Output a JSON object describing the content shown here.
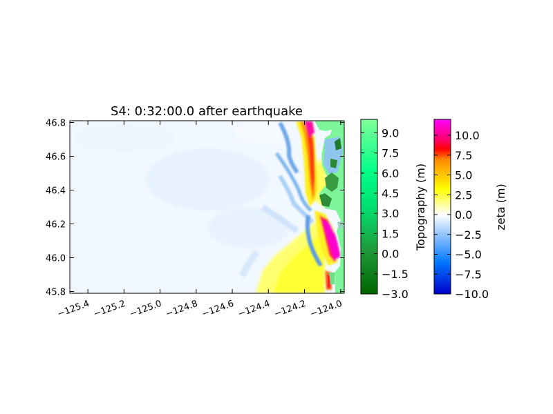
{
  "chart_data": [
    {
      "type": "heatmap",
      "title": "S4: 0:32:00.0 after earthquake",
      "xlabel": "",
      "ylabel": "",
      "xlim": [
        -125.5,
        -123.98
      ],
      "ylim": [
        45.79,
        46.81
      ],
      "x_ticks": [
        -125.4,
        -125.2,
        -125.0,
        -124.8,
        -124.6,
        -124.4,
        -124.2,
        -124.0
      ],
      "x_tick_labels": [
        "−125.4",
        "−125.2",
        "−125.0",
        "−124.8",
        "−124.6",
        "−124.4",
        "−124.2",
        "−124.0"
      ],
      "y_ticks": [
        45.8,
        46.0,
        46.2,
        46.4,
        46.6,
        46.8
      ],
      "y_tick_labels": [
        "45.8",
        "46.0",
        "46.2",
        "46.4",
        "46.6",
        "46.8"
      ],
      "grid": false,
      "colors": {
        "ocean_base": "#f2f8ff",
        "land": "#7ef59a",
        "land_dark": "#1f7a2a",
        "water_inland": "#8ec6ee"
      }
    },
    {
      "type": "colorbar",
      "label": "Topography (m)",
      "range": [
        -3.0,
        10.0
      ],
      "ticks": [
        9.0,
        7.5,
        6.0,
        4.5,
        3.0,
        1.5,
        0.0,
        -1.5,
        -3.0
      ],
      "tick_labels": [
        "9.0",
        "7.5",
        "6.0",
        "4.5",
        "3.0",
        "1.5",
        "0.0",
        "−1.5",
        "−3.0"
      ],
      "gradient": [
        "#006400",
        "#1f9a3a",
        "#00e070",
        "#00ff88",
        "#80ff99"
      ]
    },
    {
      "type": "colorbar",
      "label": "zeta (m)",
      "range": [
        -10.0,
        12.0
      ],
      "ticks": [
        10.0,
        7.5,
        5.0,
        2.5,
        0.0,
        -2.5,
        -5.0,
        -7.5,
        -10.0
      ],
      "tick_labels": [
        "10.0",
        "7.5",
        "5.0",
        "2.5",
        "0.0",
        "−2.5",
        "−5.0",
        "−7.5",
        "−10.0"
      ],
      "gradient": [
        "#0000cc",
        "#0088ff",
        "#ffffff",
        "#ffff00",
        "#ff8800",
        "#ff0000",
        "#ff00ff"
      ]
    }
  ]
}
